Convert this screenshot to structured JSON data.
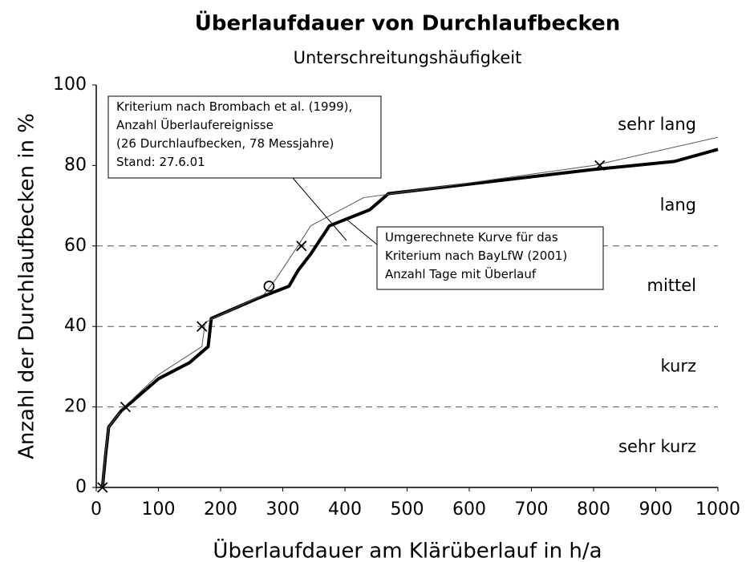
{
  "chart_data": {
    "type": "line",
    "title": "Überlaufdauer von Durchlaufbecken",
    "subtitle": "Unterschreitungshäufigkeit",
    "x_label": "Überlaufdauer am Klärüberlauf in h/a",
    "y_label": "Anzahl der Durchlaufbecken in %",
    "xlim": [
      0,
      1000
    ],
    "ylim": [
      0,
      100
    ],
    "xticks": [
      0,
      100,
      200,
      300,
      400,
      500,
      600,
      700,
      800,
      900,
      1000
    ],
    "yticks": [
      0,
      20,
      40,
      60,
      80,
      100
    ],
    "grid_lines": [
      20,
      40,
      60
    ],
    "zones": [
      "sehr kurz",
      "kurz",
      "mittel",
      "lang",
      "sehr lang"
    ],
    "series": [
      {
        "color": "#000000",
        "width": 4,
        "x": [
          10,
          15,
          20,
          40,
          100,
          150,
          180,
          185,
          260,
          310,
          325,
          345,
          375,
          440,
          470,
          800,
          930,
          1000
        ],
        "values": [
          0,
          8,
          15,
          19,
          27,
          31,
          35,
          42,
          47,
          50,
          54,
          58,
          65,
          69,
          73,
          79,
          81,
          84
        ]
      },
      {
        "color": "#555555",
        "width": 1,
        "x": [
          10,
          15,
          20,
          45,
          100,
          170,
          175,
          270,
          290,
          320,
          345,
          430,
          800,
          1000
        ],
        "values": [
          0,
          9,
          15,
          20,
          28,
          35,
          41,
          48,
          52,
          59,
          65,
          72,
          80,
          87
        ]
      }
    ],
    "markers": [
      {
        "symbol": "x",
        "x": [
          10,
          47,
          170,
          330,
          810
        ],
        "values": [
          0,
          20,
          40,
          60,
          80
        ]
      },
      {
        "symbol": "o",
        "x": [
          278
        ],
        "values": [
          50
        ]
      }
    ],
    "annotations": [
      [
        "Kriterium nach Brombach et al. (1999),",
        "Anzahl Überlaufereignisse",
        "(26 Durchlaufbecken, 78 Messjahre)",
        "Stand: 27.6.01"
      ],
      [
        "Umgerechnete Kurve für das",
        "Kriterium nach BayLfW (2001)",
        "Anzahl Tage mit Überlauf"
      ]
    ]
  }
}
